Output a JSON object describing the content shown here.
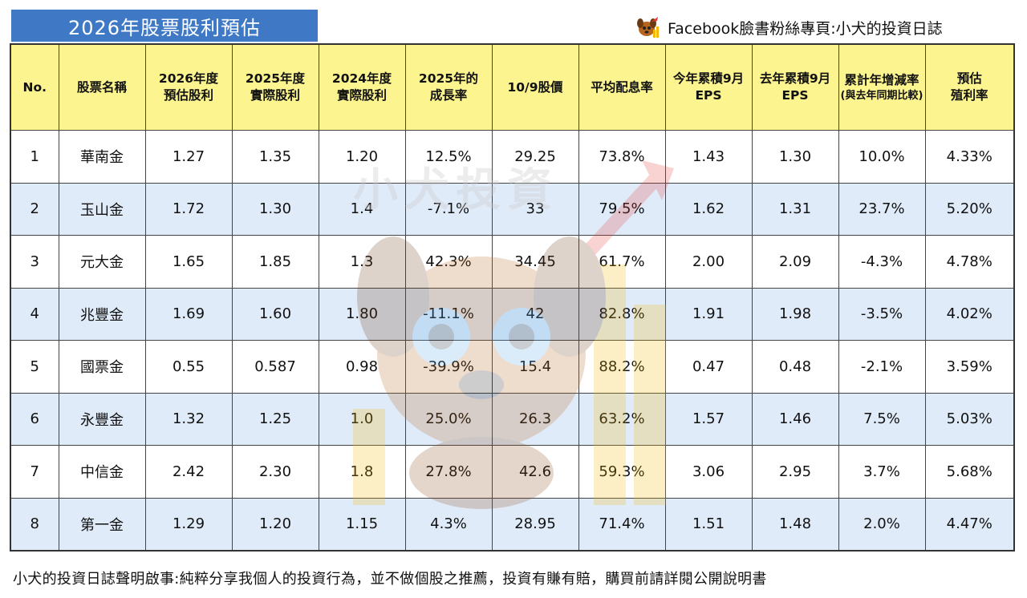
{
  "title": "2026年股票股利預估",
  "facebook_line": "Facebook臉書粉絲專頁:小犬的投資日誌",
  "watermark_text": "小犬投資",
  "columns": [
    {
      "label": "No.",
      "sub": ""
    },
    {
      "label": "股票名稱",
      "sub": ""
    },
    {
      "label": "2026年度",
      "sub": "預估股利"
    },
    {
      "label": "2025年度",
      "sub": "實際股利"
    },
    {
      "label": "2024年度",
      "sub": "實際股利"
    },
    {
      "label": "2025年的",
      "sub": "成長率"
    },
    {
      "label": "10/9股價",
      "sub": ""
    },
    {
      "label": "平均配息率",
      "sub": ""
    },
    {
      "label": "今年累積9月",
      "sub": "EPS"
    },
    {
      "label": "去年累積9月",
      "sub": "EPS"
    },
    {
      "label": "累計年增減率",
      "sub": "(與去年同期比較)"
    },
    {
      "label": "預估",
      "sub": "殖利率"
    }
  ],
  "rows": [
    [
      "1",
      "華南金",
      "1.27",
      "1.35",
      "1.20",
      "12.5%",
      "29.25",
      "73.8%",
      "1.43",
      "1.30",
      "10.0%",
      "4.33%"
    ],
    [
      "2",
      "玉山金",
      "1.72",
      "1.30",
      "1.4",
      "-7.1%",
      "33",
      "79.5%",
      "1.62",
      "1.31",
      "23.7%",
      "5.20%"
    ],
    [
      "3",
      "元大金",
      "1.65",
      "1.85",
      "1.3",
      "42.3%",
      "34.45",
      "61.7%",
      "2.00",
      "2.09",
      "-4.3%",
      "4.78%"
    ],
    [
      "4",
      "兆豐金",
      "1.69",
      "1.60",
      "1.80",
      "-11.1%",
      "42",
      "82.8%",
      "1.91",
      "1.98",
      "-3.5%",
      "4.02%"
    ],
    [
      "5",
      "國票金",
      "0.55",
      "0.587",
      "0.98",
      "-39.9%",
      "15.4",
      "88.2%",
      "0.47",
      "0.48",
      "-2.1%",
      "3.59%"
    ],
    [
      "6",
      "永豐金",
      "1.32",
      "1.25",
      "1.0",
      "25.0%",
      "26.3",
      "63.2%",
      "1.57",
      "1.46",
      "7.5%",
      "5.03%"
    ],
    [
      "7",
      "中信金",
      "2.42",
      "2.30",
      "1.8",
      "27.8%",
      "42.6",
      "59.3%",
      "3.06",
      "2.95",
      "3.7%",
      "5.68%"
    ],
    [
      "8",
      "第一金",
      "1.29",
      "1.20",
      "1.15",
      "4.3%",
      "28.95",
      "71.4%",
      "1.51",
      "1.48",
      "2.0%",
      "4.47%"
    ]
  ],
  "footer": "小犬的投資日誌聲明啟事:純粹分享我個人的投資行為，並不做個股之推薦，投資有賺有賠，購買前請詳閱公開說明書",
  "colors": {
    "title_bg": "#3f79c6",
    "header_bg": "#fbf48f",
    "row_alt_bg": "#dce8f8"
  }
}
